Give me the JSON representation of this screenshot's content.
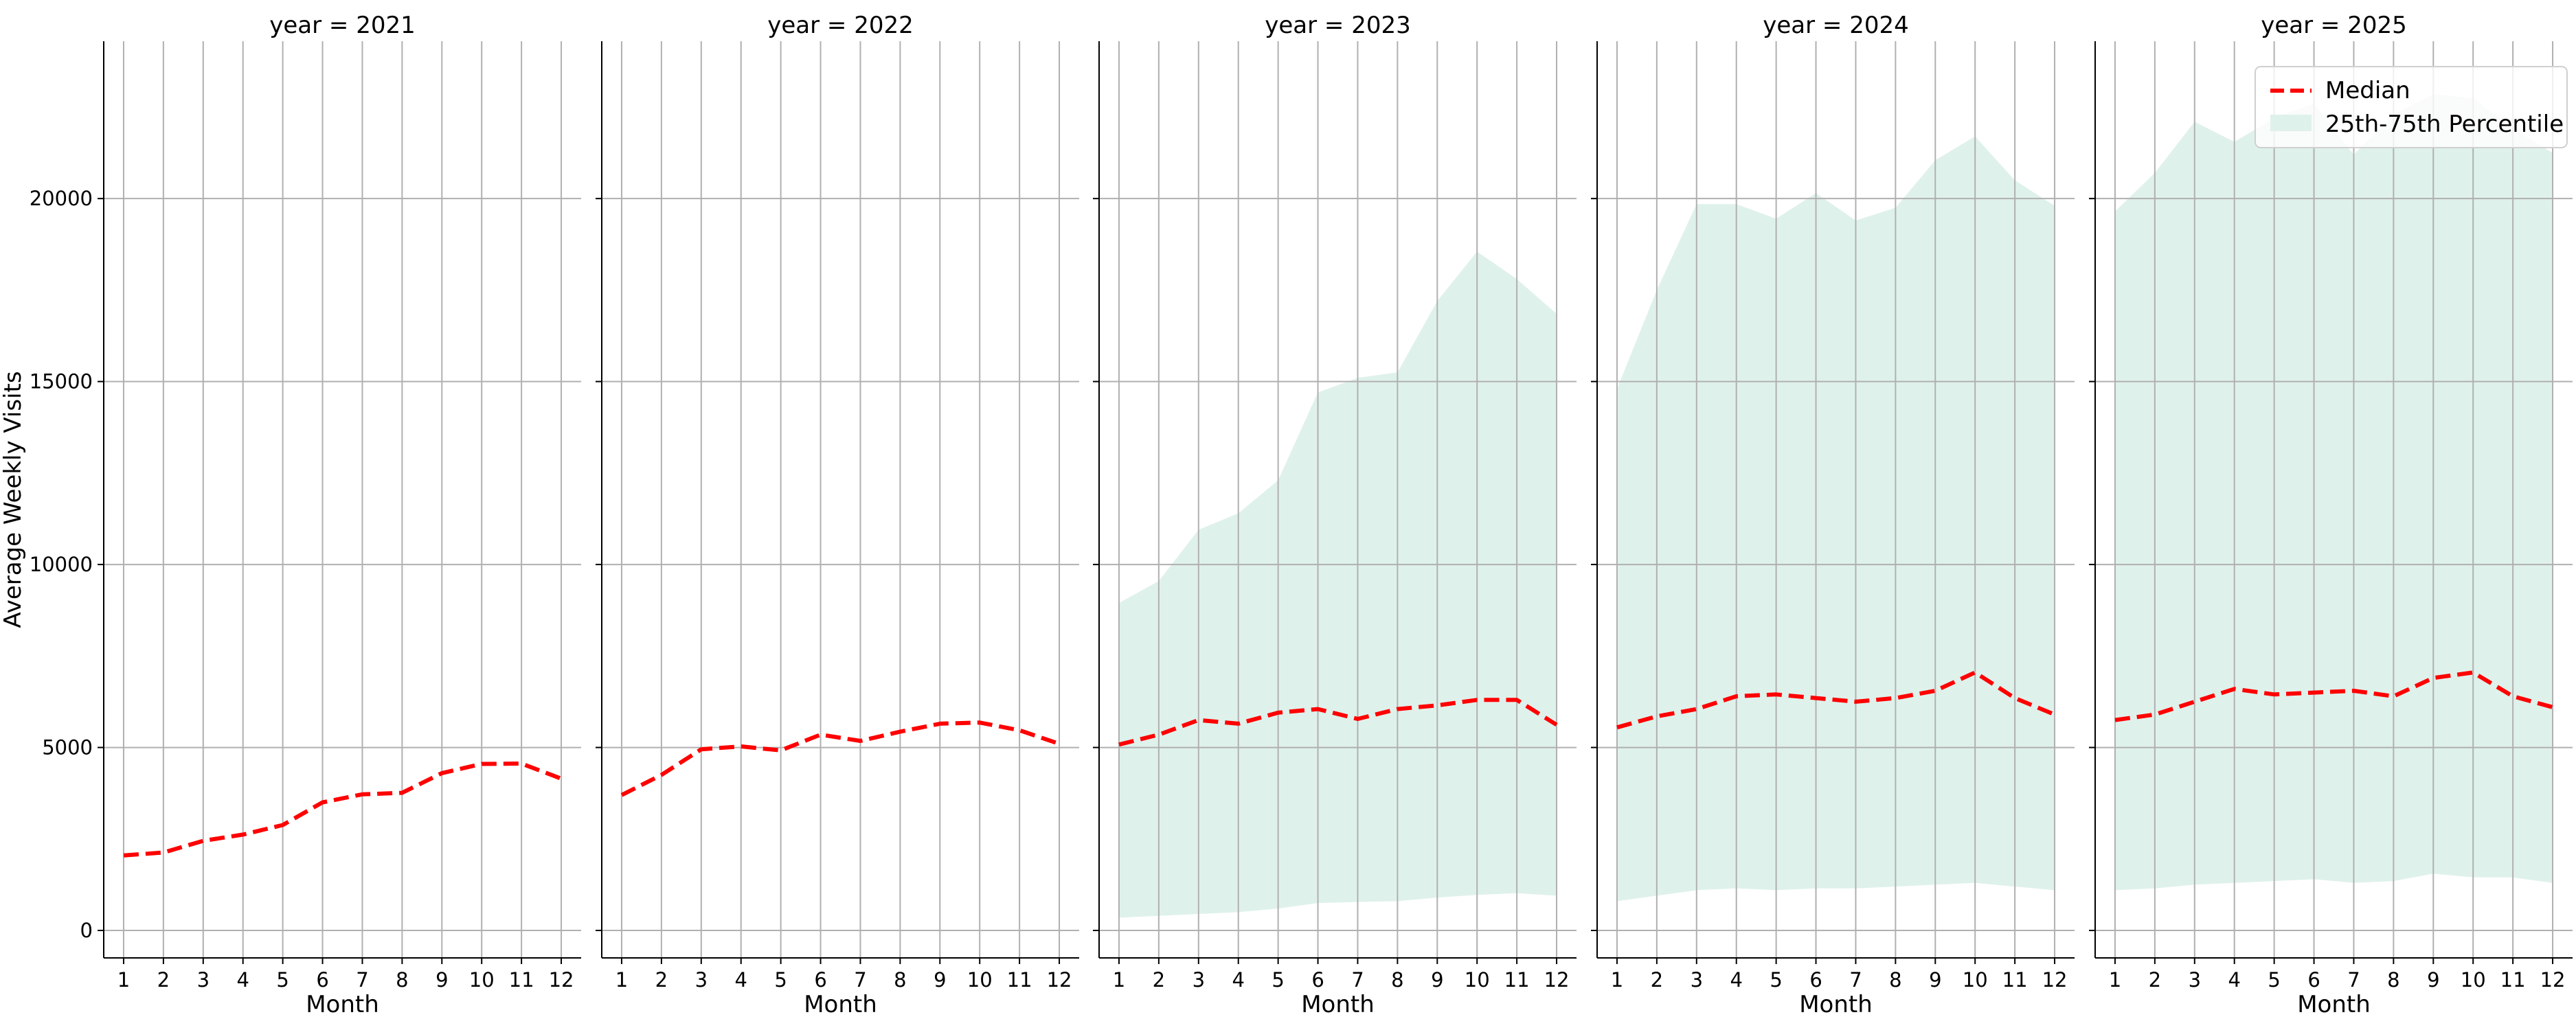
{
  "chart_data": {
    "type": "line",
    "ylabel": "Average Weekly Visits",
    "xlabel": "Month",
    "ylim": [
      -750,
      24300
    ],
    "xlim": [
      0.5,
      12.5
    ],
    "yticks": [
      0,
      5000,
      10000,
      15000,
      20000
    ],
    "xticks": [
      1,
      2,
      3,
      4,
      5,
      6,
      7,
      8,
      9,
      10,
      11,
      12
    ],
    "grid": true,
    "legend": {
      "placement": "top-right",
      "entries": [
        "Median",
        "25th-75th Percentile"
      ]
    },
    "colors": {
      "median": "#ff0000",
      "band": "#dff1eb"
    },
    "panels": [
      {
        "title": "year = 2021",
        "x": [
          1,
          2,
          3,
          4,
          5,
          6,
          7,
          8,
          9,
          10,
          11,
          12
        ],
        "median": [
          2050,
          2130,
          2450,
          2620,
          2880,
          3500,
          3720,
          3760,
          4300,
          4550,
          4560,
          4150
        ],
        "p25": null,
        "p75": null
      },
      {
        "title": "year = 2022",
        "x": [
          1,
          2,
          3,
          4,
          5,
          6,
          7,
          8,
          9,
          10,
          11,
          12
        ],
        "median": [
          3700,
          4250,
          4950,
          5030,
          4920,
          5350,
          5180,
          5430,
          5650,
          5680,
          5470,
          5100
        ],
        "p25": null,
        "p75": null
      },
      {
        "title": "year = 2023",
        "x": [
          1,
          2,
          3,
          4,
          5,
          6,
          7,
          8,
          9,
          10,
          11,
          12
        ],
        "median": [
          5080,
          5350,
          5750,
          5650,
          5950,
          6050,
          5780,
          6050,
          6150,
          6300,
          6300,
          5620
        ],
        "p25": [
          350,
          400,
          450,
          500,
          600,
          750,
          780,
          800,
          900,
          970,
          1020,
          950
        ],
        "p75": [
          8950,
          9550,
          10950,
          11400,
          12300,
          14700,
          15100,
          15250,
          17200,
          18550,
          17800,
          16850
        ]
      },
      {
        "title": "year = 2024",
        "x": [
          1,
          2,
          3,
          4,
          5,
          6,
          7,
          8,
          9,
          10,
          11,
          12
        ],
        "median": [
          5550,
          5850,
          6050,
          6400,
          6450,
          6350,
          6250,
          6350,
          6550,
          7050,
          6350,
          5900
        ],
        "p25": [
          800,
          950,
          1100,
          1150,
          1100,
          1150,
          1150,
          1200,
          1250,
          1300,
          1200,
          1100
        ],
        "p75": [
          14800,
          17500,
          19850,
          19850,
          19450,
          20150,
          19400,
          19750,
          21050,
          21700,
          20500,
          19800
        ]
      },
      {
        "title": "year = 2025",
        "x": [
          1,
          2,
          3,
          4,
          5,
          6,
          7,
          8,
          9,
          10,
          11,
          12
        ],
        "median": [
          5750,
          5900,
          6250,
          6600,
          6450,
          6500,
          6550,
          6400,
          6900,
          7050,
          6400,
          6100
        ],
        "p25": [
          1100,
          1150,
          1250,
          1300,
          1350,
          1400,
          1300,
          1350,
          1550,
          1450,
          1450,
          1300
        ],
        "p75": [
          19650,
          20700,
          22100,
          21550,
          22200,
          22600,
          21200,
          22300,
          22850,
          22750,
          21900,
          21250
        ]
      }
    ]
  }
}
